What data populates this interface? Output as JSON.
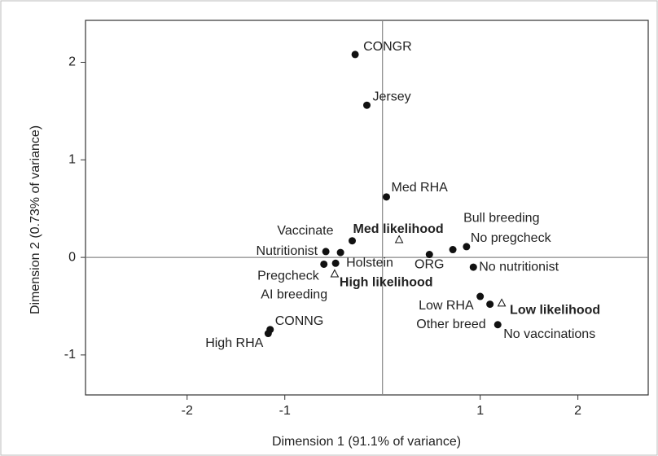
{
  "chart_data": {
    "type": "scatter",
    "x_label": "Dimension 1 (91.1% of variance)",
    "y_label": "Dimension 2 (0.73% of variance)",
    "xlim": [
      -3.04,
      2.72
    ],
    "ylim": [
      -1.41,
      2.43
    ],
    "xticks": [
      -2,
      -1,
      1,
      2
    ],
    "yticks": [
      -1,
      0,
      1,
      2
    ],
    "zero_lines": true,
    "color": "#111111",
    "points": [
      {
        "label": "CONGR",
        "x": -0.28,
        "y": 2.08,
        "marker": "circle"
      },
      {
        "label": "Jersey",
        "x": -0.16,
        "y": 1.56,
        "marker": "circle"
      },
      {
        "label": "Med RHA",
        "x": 0.04,
        "y": 0.62,
        "marker": "circle"
      },
      {
        "label": "Vaccinate",
        "x": -0.31,
        "y": 0.17,
        "marker": "circle"
      },
      {
        "label": "Nutritionist",
        "x": -0.58,
        "y": 0.06,
        "marker": "circle"
      },
      {
        "label": "Holstein",
        "x": -0.43,
        "y": 0.05,
        "marker": "circle"
      },
      {
        "label": "Pregcheck",
        "x": -0.6,
        "y": -0.07,
        "marker": "circle"
      },
      {
        "label": "AI breeding",
        "x": -0.48,
        "y": -0.06,
        "marker": "circle"
      },
      {
        "label": "Med likelihood",
        "x": 0.17,
        "y": 0.18,
        "marker": "triangle"
      },
      {
        "label": "High likelihood",
        "x": -0.49,
        "y": -0.17,
        "marker": "triangle"
      },
      {
        "label": "ORG",
        "x": 0.48,
        "y": 0.03,
        "marker": "circle"
      },
      {
        "label": "Bull breeding",
        "x": 0.72,
        "y": 0.08,
        "marker": "circle"
      },
      {
        "label": "No pregcheck",
        "x": 0.86,
        "y": 0.11,
        "marker": "circle"
      },
      {
        "label": "No nutritionist",
        "x": 0.93,
        "y": -0.1,
        "marker": "circle"
      },
      {
        "label": "Low RHA",
        "x": 1.0,
        "y": -0.4,
        "marker": "circle"
      },
      {
        "label": "Other breed",
        "x": 1.1,
        "y": -0.48,
        "marker": "circle"
      },
      {
        "label": "Low likelihood",
        "x": 1.22,
        "y": -0.47,
        "marker": "triangle"
      },
      {
        "label": "No vaccinations",
        "x": 1.18,
        "y": -0.69,
        "marker": "circle"
      },
      {
        "label": "CONNG",
        "x": -1.15,
        "y": -0.74,
        "marker": "circle"
      },
      {
        "label": "High RHA",
        "x": -1.17,
        "y": -0.78,
        "marker": "circle"
      }
    ]
  }
}
